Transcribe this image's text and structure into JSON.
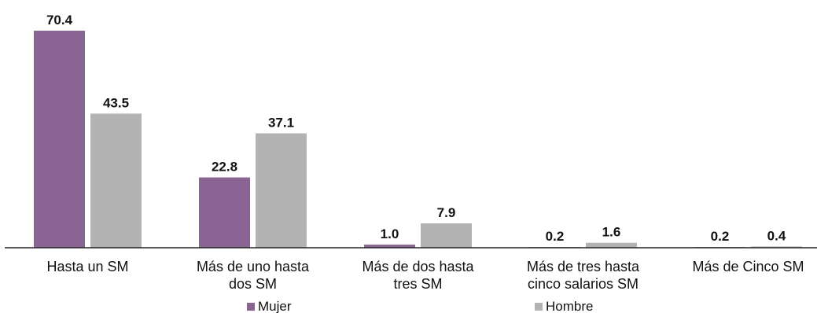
{
  "chart_data": {
    "type": "bar",
    "categories": [
      [
        "Hasta un SM"
      ],
      [
        "Más de uno hasta",
        "dos SM"
      ],
      [
        "Más de dos hasta",
        "tres SM"
      ],
      [
        "Más de tres hasta",
        "cinco salarios SM"
      ],
      [
        "Más de Cinco SM"
      ]
    ],
    "series": [
      {
        "name": "Mujer",
        "color": "#8a6594",
        "values": [
          70.4,
          22.8,
          1.0,
          0.2,
          0.2
        ]
      },
      {
        "name": "Hombre",
        "color": "#b3b3b3",
        "values": [
          43.5,
          37.1,
          7.9,
          1.6,
          0.4
        ]
      }
    ],
    "title": "",
    "xlabel": "",
    "ylabel": "",
    "ylim": [
      0,
      70.4
    ],
    "grid": false,
    "legend_position": "bottom"
  }
}
